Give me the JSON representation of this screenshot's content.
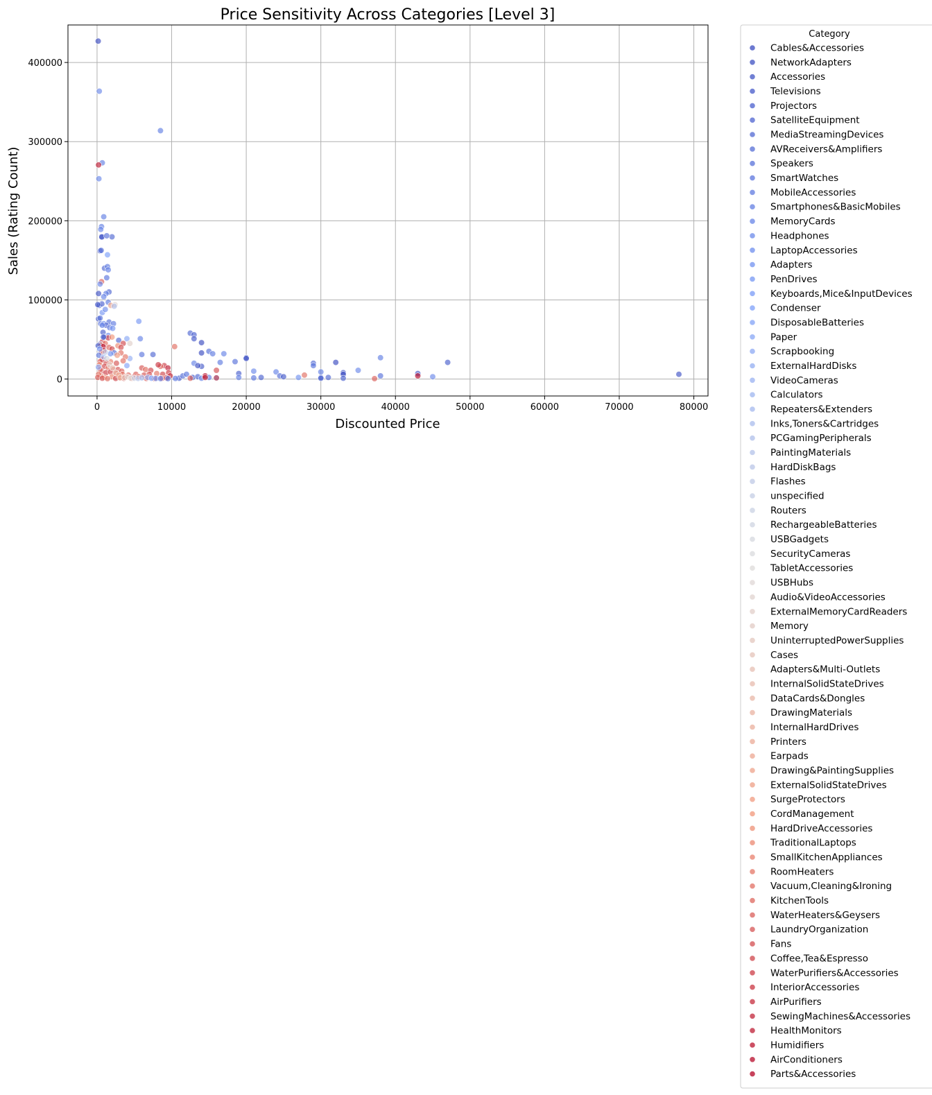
{
  "chart_data": {
    "type": "scatter",
    "title": "Price Sensitivity Across Categories [Level 3]",
    "xlabel": "Discounted Price",
    "ylabel": "Sales (Rating Count)",
    "xlim": [
      -3900,
      81900
    ],
    "ylim": [
      -21400,
      447400
    ],
    "xticks": [
      0,
      10000,
      20000,
      30000,
      40000,
      50000,
      60000,
      70000,
      80000
    ],
    "yticks": [
      0,
      100000,
      200000,
      300000,
      400000
    ],
    "grid": true,
    "legend": {
      "title": "Category",
      "placement": "outside-right",
      "entries": [
        "Cables&Accessories",
        "NetworkAdapters",
        "Accessories",
        "Televisions",
        "Projectors",
        "SatelliteEquipment",
        "MediaStreamingDevices",
        "AVReceivers&Amplifiers",
        "Speakers",
        "SmartWatches",
        "MobileAccessories",
        "Smartphones&BasicMobiles",
        "MemoryCards",
        "Headphones",
        "LaptopAccessories",
        "Adapters",
        "PenDrives",
        "Keyboards,Mice&InputDevices",
        "Condenser",
        "DisposableBatteries",
        "Paper",
        "Scrapbooking",
        "ExternalHardDisks",
        "VideoCameras",
        "Calculators",
        "Repeaters&Extenders",
        "Inks,Toners&Cartridges",
        "PCGamingPeripherals",
        "PaintingMaterials",
        "HardDiskBags",
        "Flashes",
        "unspecified",
        "Routers",
        "RechargeableBatteries",
        "USBGadgets",
        "SecurityCameras",
        "TabletAccessories",
        "USBHubs",
        "Audio&VideoAccessories",
        "ExternalMemoryCardReaders",
        "Memory",
        "UninterruptedPowerSupplies",
        "Cases",
        "Adapters&Multi-Outlets",
        "InternalSolidStateDrives",
        "DataCards&Dongles",
        "DrawingMaterials",
        "InternalHardDrives",
        "Printers",
        "Earpads",
        "Drawing&PaintingSupplies",
        "ExternalSolidStateDrives",
        "SurgeProtectors",
        "CordManagement",
        "HardDriveAccessories",
        "TraditionalLaptops",
        "SmallKitchenAppliances",
        "RoomHeaters",
        "Vacuum,Cleaning&Ironing",
        "KitchenTools",
        "WaterHeaters&Geysers",
        "LaundryOrganization",
        "Fans",
        "Coffee,Tea&Espresso",
        "WaterPurifiers&Accessories",
        "InteriorAccessories",
        "AirPurifiers",
        "SewingMachines&Accessories",
        "HealthMonitors",
        "Humidifiers",
        "AirConditioners",
        "Parts&Accessories"
      ]
    },
    "points": [
      [
        150,
        426973,
        0
      ],
      [
        300,
        363713,
        13
      ],
      [
        8499,
        313836,
        11
      ],
      [
        700,
        273189,
        11
      ],
      [
        200,
        270563,
        68
      ],
      [
        250,
        253105,
        13
      ],
      [
        900,
        205052,
        11
      ],
      [
        600,
        192590,
        11
      ],
      [
        500,
        189104,
        13
      ],
      [
        2000,
        179691,
        6
      ],
      [
        600,
        180000,
        4
      ],
      [
        650,
        179500,
        2
      ],
      [
        1300,
        181000,
        8
      ],
      [
        400,
        162000,
        3
      ],
      [
        550,
        162500,
        7
      ],
      [
        1400,
        157000,
        18
      ],
      [
        1000,
        140000,
        6
      ],
      [
        1400,
        142000,
        10
      ],
      [
        1500,
        138000,
        12
      ],
      [
        1300,
        128000,
        9
      ],
      [
        600,
        123000,
        60
      ],
      [
        400,
        120000,
        13
      ],
      [
        1600,
        110000,
        6
      ],
      [
        1200,
        108000,
        11
      ],
      [
        200,
        108000,
        2
      ],
      [
        900,
        104000,
        12
      ],
      [
        2400,
        94000,
        38
      ],
      [
        300,
        93000,
        7
      ],
      [
        650,
        95000,
        5
      ],
      [
        1500,
        97000,
        10
      ],
      [
        1850,
        93000,
        50
      ],
      [
        2300,
        92000,
        27
      ],
      [
        200,
        76000,
        3
      ],
      [
        400,
        77000,
        8
      ],
      [
        700,
        84000,
        16
      ],
      [
        500,
        70000,
        8
      ],
      [
        1600,
        72000,
        8
      ],
      [
        900,
        70000,
        14
      ],
      [
        2200,
        70000,
        10
      ],
      [
        1200,
        68000,
        5
      ],
      [
        1500,
        55000,
        13
      ],
      [
        800,
        59000,
        4
      ],
      [
        5600,
        73000,
        16
      ],
      [
        5800,
        51000,
        12
      ],
      [
        4000,
        51000,
        20
      ],
      [
        1000,
        53000,
        9
      ],
      [
        1500,
        52000,
        65
      ],
      [
        2000,
        53000,
        53
      ],
      [
        2900,
        49000,
        6
      ],
      [
        700,
        47000,
        64
      ],
      [
        400,
        44000,
        2
      ],
      [
        1100,
        45000,
        57
      ],
      [
        3500,
        45000,
        63
      ],
      [
        4400,
        45000,
        39
      ],
      [
        14000,
        46000,
        0
      ],
      [
        12500,
        58000,
        6
      ],
      [
        13000,
        56000,
        5
      ],
      [
        13000,
        51000,
        3
      ],
      [
        10400,
        41000,
        58
      ],
      [
        500,
        43000,
        54
      ],
      [
        800,
        41000,
        72
      ],
      [
        2800,
        42000,
        55
      ],
      [
        3200,
        40000,
        62
      ],
      [
        1600,
        40000,
        59
      ],
      [
        2000,
        38000,
        63
      ],
      [
        900,
        36000,
        66
      ],
      [
        600,
        34000,
        60
      ],
      [
        2300,
        33000,
        8
      ],
      [
        3200,
        33000,
        58
      ],
      [
        2700,
        30000,
        52
      ],
      [
        1800,
        32000,
        15
      ],
      [
        14000,
        33000,
        0
      ],
      [
        15000,
        35000,
        8
      ],
      [
        15500,
        32000,
        10
      ],
      [
        17000,
        32000,
        12
      ],
      [
        7500,
        31000,
        6
      ],
      [
        6000,
        31000,
        9
      ],
      [
        20000,
        27000,
        3
      ],
      [
        20000,
        26000,
        2
      ],
      [
        18500,
        22000,
        8
      ],
      [
        16500,
        21000,
        10
      ],
      [
        13000,
        20000,
        12
      ],
      [
        14000,
        16000,
        3
      ],
      [
        13500,
        17000,
        1
      ],
      [
        32000,
        21000,
        0
      ],
      [
        29000,
        20000,
        6
      ],
      [
        29000,
        17000,
        9
      ],
      [
        38000,
        27000,
        11
      ],
      [
        35000,
        11000,
        13
      ],
      [
        47000,
        21000,
        4
      ],
      [
        9000,
        17000,
        64
      ],
      [
        8500,
        16000,
        59
      ],
      [
        8200,
        18000,
        65
      ],
      [
        9500,
        14000,
        68
      ],
      [
        6000,
        14000,
        61
      ],
      [
        6500,
        12000,
        58
      ],
      [
        7200,
        11000,
        63
      ],
      [
        16000,
        11000,
        62
      ],
      [
        4000,
        17000,
        19
      ],
      [
        4400,
        26000,
        22
      ],
      [
        3800,
        28000,
        57
      ],
      [
        3500,
        23000,
        58
      ],
      [
        2600,
        20000,
        61
      ],
      [
        1800,
        22000,
        56
      ],
      [
        1200,
        21000,
        62
      ],
      [
        700,
        25000,
        67
      ],
      [
        400,
        22000,
        60
      ],
      [
        300,
        18000,
        55
      ],
      [
        1000,
        16000,
        63
      ],
      [
        1500,
        14000,
        57
      ],
      [
        2200,
        12000,
        59
      ],
      [
        2800,
        12000,
        61
      ],
      [
        3300,
        10000,
        60
      ],
      [
        600,
        10000,
        62
      ],
      [
        400,
        12000,
        59
      ],
      [
        1200,
        8000,
        64
      ],
      [
        1800,
        9000,
        63
      ],
      [
        2600,
        7000,
        58
      ],
      [
        3400,
        6000,
        57
      ],
      [
        4200,
        5000,
        59
      ],
      [
        5200,
        6000,
        60
      ],
      [
        6300,
        5000,
        61
      ],
      [
        7000,
        6000,
        62
      ],
      [
        8000,
        7000,
        57
      ],
      [
        8800,
        6000,
        63
      ],
      [
        9600,
        8000,
        64
      ],
      [
        9800,
        4000,
        66
      ],
      [
        5600,
        3000,
        59
      ],
      [
        4800,
        2000,
        62
      ],
      [
        3900,
        3000,
        58
      ],
      [
        3000,
        2000,
        57
      ],
      [
        2000,
        3000,
        55
      ],
      [
        1000,
        2000,
        53
      ],
      [
        500,
        4000,
        55
      ],
      [
        200,
        6000,
        57
      ],
      [
        100,
        2000,
        60
      ],
      [
        700,
        1000,
        62
      ],
      [
        1400,
        500,
        58
      ],
      [
        2500,
        800,
        63
      ],
      [
        3600,
        900,
        61
      ],
      [
        4600,
        700,
        56
      ],
      [
        6600,
        800,
        60
      ],
      [
        7700,
        500,
        59
      ],
      [
        8700,
        900,
        62
      ],
      [
        9300,
        1500,
        64
      ],
      [
        11000,
        1000,
        5
      ],
      [
        11500,
        4000,
        7
      ],
      [
        12000,
        6000,
        9
      ],
      [
        12800,
        2000,
        3
      ],
      [
        13500,
        3000,
        6
      ],
      [
        14000,
        1000,
        12
      ],
      [
        14500,
        4000,
        70
      ],
      [
        15000,
        2000,
        10
      ],
      [
        16000,
        1500,
        8
      ],
      [
        19000,
        7000,
        4
      ],
      [
        19000,
        2000,
        11
      ],
      [
        21000,
        10000,
        13
      ],
      [
        21000,
        1500,
        9
      ],
      [
        22000,
        2000,
        5
      ],
      [
        24000,
        9000,
        12
      ],
      [
        24500,
        4000,
        7
      ],
      [
        25000,
        3000,
        3
      ],
      [
        27000,
        2000,
        15
      ],
      [
        27800,
        5000,
        58
      ],
      [
        30000,
        9000,
        11
      ],
      [
        30000,
        2000,
        7
      ],
      [
        30000,
        1000,
        4
      ],
      [
        31000,
        2000,
        6
      ],
      [
        33000,
        8000,
        2
      ],
      [
        33000,
        6000,
        0
      ],
      [
        33000,
        1000,
        5
      ],
      [
        37200,
        500,
        60
      ],
      [
        38000,
        4000,
        8
      ],
      [
        43000,
        7000,
        3
      ],
      [
        43000,
        4000,
        70
      ],
      [
        45000,
        3000,
        13
      ],
      [
        78000,
        6000,
        2
      ],
      [
        16000,
        1500,
        62
      ],
      [
        14500,
        2000,
        68
      ],
      [
        12500,
        1000,
        60
      ],
      [
        10500,
        800,
        10
      ],
      [
        9500,
        600,
        8
      ],
      [
        100,
        94000,
        2
      ],
      [
        150,
        42000,
        4
      ],
      [
        250,
        30000,
        10
      ],
      [
        350,
        38000,
        16
      ],
      [
        180,
        15000,
        20
      ],
      [
        900,
        28000,
        24
      ],
      [
        1100,
        34000,
        30
      ],
      [
        1300,
        26000,
        34
      ],
      [
        1700,
        18000,
        40
      ],
      [
        2100,
        14000,
        44
      ],
      [
        2500,
        8000,
        46
      ],
      [
        2900,
        5000,
        50
      ],
      [
        3100,
        1500,
        48
      ],
      [
        3700,
        1800,
        42
      ],
      [
        4100,
        2500,
        38
      ],
      [
        4500,
        1200,
        36
      ],
      [
        5000,
        1000,
        32
      ],
      [
        5500,
        800,
        28
      ],
      [
        6000,
        1500,
        26
      ],
      [
        6800,
        2000,
        22
      ],
      [
        7300,
        1000,
        18
      ],
      [
        7900,
        800,
        14
      ],
      [
        8500,
        600,
        12
      ],
      [
        850,
        53000,
        1
      ],
      [
        700,
        68000,
        12
      ],
      [
        1100,
        88000,
        14
      ],
      [
        1700,
        65000,
        9
      ],
      [
        2100,
        64000,
        15
      ]
    ]
  }
}
